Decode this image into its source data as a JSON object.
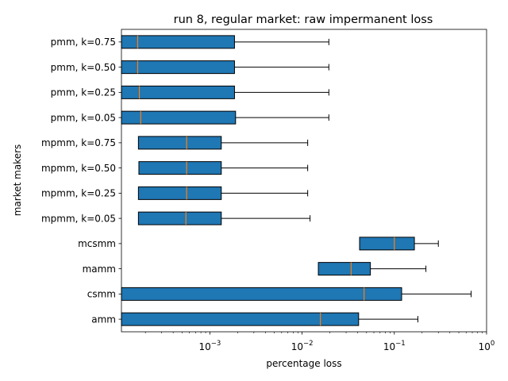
{
  "chart_data": {
    "type": "boxplot",
    "orientation": "horizontal",
    "title": "run 8, regular market: raw impermanent loss",
    "xlabel": "percentage loss",
    "ylabel": "market makers",
    "x_scale": "log",
    "xlim": [
      0.00011,
      1.0
    ],
    "x_ticks": [
      {
        "value": 0.001,
        "base": "10",
        "exp": "−3"
      },
      {
        "value": 0.01,
        "base": "10",
        "exp": "−2"
      },
      {
        "value": 0.1,
        "base": "10",
        "exp": "−1"
      },
      {
        "value": 1,
        "base": "10",
        "exp": "0"
      }
    ],
    "box_color": "#1f77b4",
    "median_color": "#ff7f0e",
    "series": [
      {
        "label": "pmm, k=0.75",
        "whisker_low": 0.00011,
        "q1": 0.00011,
        "median": 0.000165,
        "q3": 0.00185,
        "whisker_high": 0.0195
      },
      {
        "label": "pmm, k=0.50",
        "whisker_low": 0.00011,
        "q1": 0.00011,
        "median": 0.000165,
        "q3": 0.00185,
        "whisker_high": 0.0195
      },
      {
        "label": "pmm, k=0.25",
        "whisker_low": 0.00011,
        "q1": 0.00011,
        "median": 0.000172,
        "q3": 0.00185,
        "whisker_high": 0.0195
      },
      {
        "label": "pmm, k=0.05",
        "whisker_low": 0.00011,
        "q1": 0.00011,
        "median": 0.000178,
        "q3": 0.0019,
        "whisker_high": 0.0195
      },
      {
        "label": "mpmm, k=0.75",
        "whisker_low": 0.000168,
        "q1": 0.000168,
        "median": 0.00056,
        "q3": 0.00133,
        "whisker_high": 0.0115
      },
      {
        "label": "mpmm, k=0.50",
        "whisker_low": 0.00017,
        "q1": 0.00017,
        "median": 0.00056,
        "q3": 0.00133,
        "whisker_high": 0.0115
      },
      {
        "label": "mpmm, k=0.25",
        "whisker_low": 0.000168,
        "q1": 0.000168,
        "median": 0.00056,
        "q3": 0.00133,
        "whisker_high": 0.0115
      },
      {
        "label": "mpmm, k=0.05",
        "whisker_low": 0.000168,
        "q1": 0.000168,
        "median": 0.00055,
        "q3": 0.00133,
        "whisker_high": 0.0122
      },
      {
        "label": "mcsmm",
        "whisker_low": 0.042,
        "q1": 0.042,
        "median": 0.1,
        "q3": 0.165,
        "whisker_high": 0.3
      },
      {
        "label": "mamm",
        "whisker_low": 0.015,
        "q1": 0.015,
        "median": 0.034,
        "q3": 0.055,
        "whisker_high": 0.22
      },
      {
        "label": "csmm",
        "whisker_low": 0.00011,
        "q1": 0.00011,
        "median": 0.047,
        "q3": 0.12,
        "whisker_high": 0.68
      },
      {
        "label": "amm",
        "whisker_low": 0.00011,
        "q1": 0.00011,
        "median": 0.0158,
        "q3": 0.041,
        "whisker_high": 0.18
      }
    ]
  }
}
